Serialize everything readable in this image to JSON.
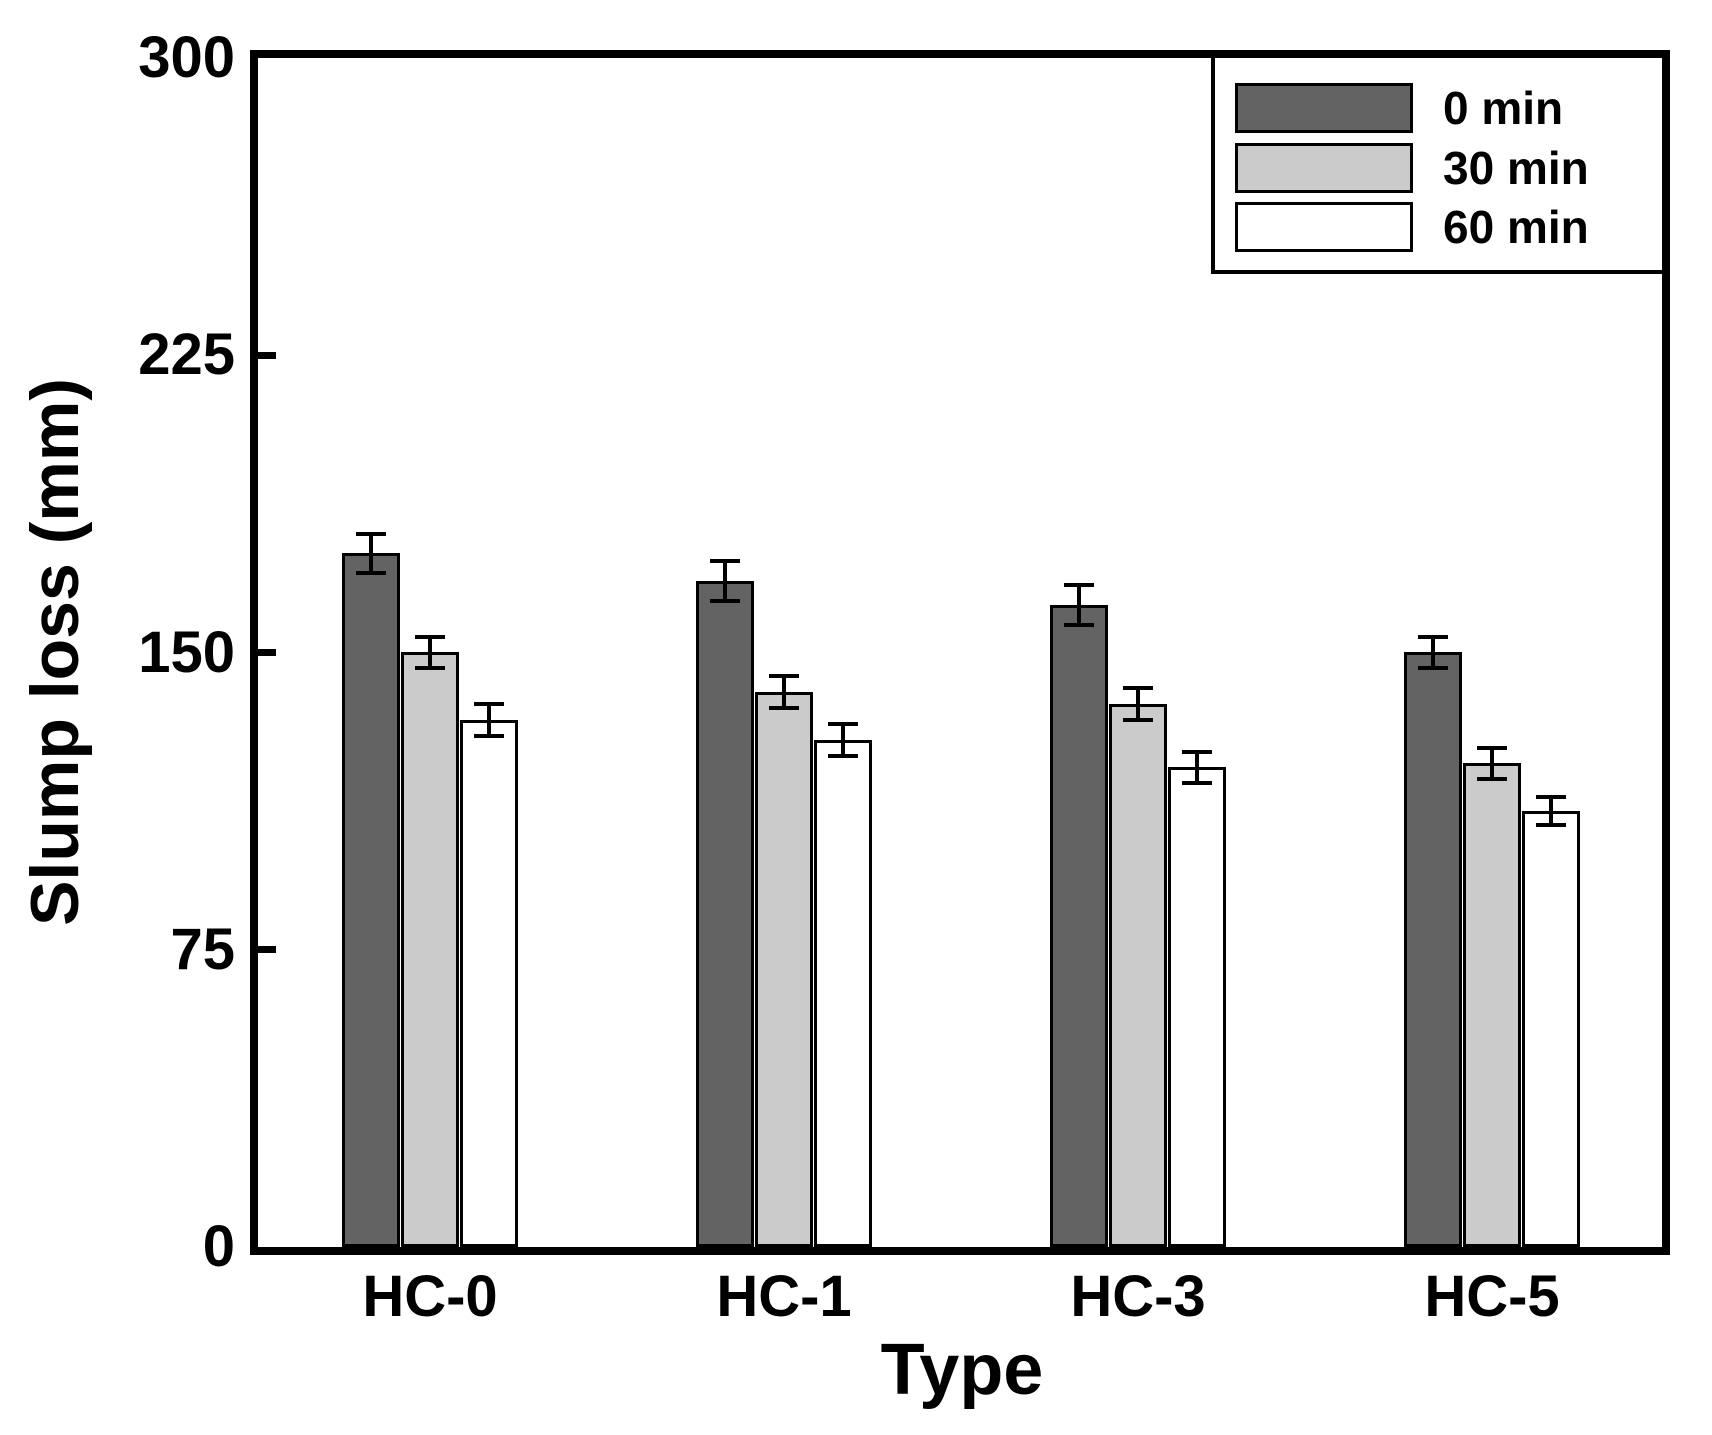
{
  "chart_data": {
    "type": "bar",
    "title": "",
    "xlabel": "Type",
    "ylabel": "Slump loss (mm)",
    "ylim": [
      0,
      300
    ],
    "yticks": [
      0,
      75,
      150,
      225,
      300
    ],
    "yticks_marked": [
      75,
      150,
      225
    ],
    "categories": [
      "HC-0",
      "HC-1",
      "HC-3",
      "HC-5"
    ],
    "series": [
      {
        "name": "0 min",
        "color": "#636363",
        "values": [
          175,
          168,
          162,
          150
        ],
        "errors": [
          5,
          5,
          5,
          4
        ]
      },
      {
        "name": "30 min",
        "color": "#cbcbcb",
        "values": [
          150,
          140,
          137,
          122
        ],
        "errors": [
          4,
          4,
          4,
          4
        ]
      },
      {
        "name": "60 min",
        "color": "#ffffff",
        "values": [
          133,
          128,
          121,
          110
        ],
        "errors": [
          4,
          4,
          4,
          3.5
        ]
      }
    ],
    "legend_position": "top-right",
    "grid": false,
    "bar_border_color": "#000000",
    "error_bar_color": "#000000",
    "frame_color": "#000000",
    "background_color": "#ffffff"
  },
  "legend": {
    "items": [
      {
        "label": "0 min",
        "color": "#636363"
      },
      {
        "label": "30 min",
        "color": "#cbcbcb"
      },
      {
        "label": "60 min",
        "color": "#ffffff"
      }
    ]
  }
}
